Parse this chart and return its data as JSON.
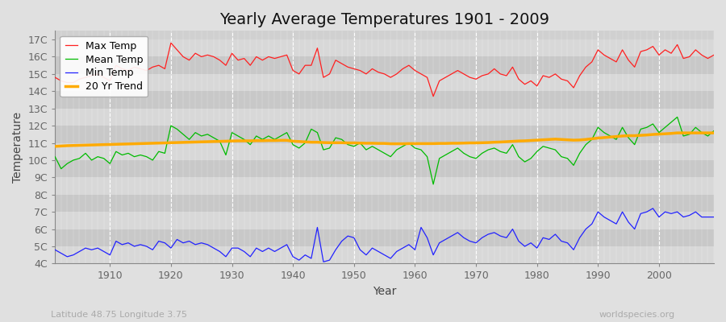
{
  "title": "Yearly Average Temperatures 1901 - 2009",
  "xlabel": "Year",
  "ylabel": "Temperature",
  "subtitle_left": "Latitude 48.75 Longitude 3.75",
  "subtitle_right": "worldspecies.org",
  "years": [
    1901,
    1902,
    1903,
    1904,
    1905,
    1906,
    1907,
    1908,
    1909,
    1910,
    1911,
    1912,
    1913,
    1914,
    1915,
    1916,
    1917,
    1918,
    1919,
    1920,
    1921,
    1922,
    1923,
    1924,
    1925,
    1926,
    1927,
    1928,
    1929,
    1930,
    1931,
    1932,
    1933,
    1934,
    1935,
    1936,
    1937,
    1938,
    1939,
    1940,
    1941,
    1942,
    1943,
    1944,
    1945,
    1946,
    1947,
    1948,
    1949,
    1950,
    1951,
    1952,
    1953,
    1954,
    1955,
    1956,
    1957,
    1958,
    1959,
    1960,
    1961,
    1962,
    1963,
    1964,
    1965,
    1966,
    1967,
    1968,
    1969,
    1970,
    1971,
    1972,
    1973,
    1974,
    1975,
    1976,
    1977,
    1978,
    1979,
    1980,
    1981,
    1982,
    1983,
    1984,
    1985,
    1986,
    1987,
    1988,
    1989,
    1990,
    1991,
    1992,
    1993,
    1994,
    1995,
    1996,
    1997,
    1998,
    1999,
    2000,
    2001,
    2002,
    2003,
    2004,
    2005,
    2006,
    2007,
    2008,
    2009
  ],
  "max_temp": [
    14.8,
    14.6,
    14.5,
    14.5,
    14.7,
    14.8,
    14.9,
    15.0,
    14.8,
    14.6,
    15.5,
    15.3,
    15.2,
    15.4,
    15.3,
    15.2,
    15.4,
    15.5,
    15.3,
    16.8,
    16.4,
    16.0,
    15.8,
    16.2,
    16.0,
    16.1,
    16.0,
    15.8,
    15.5,
    16.2,
    15.8,
    15.9,
    15.5,
    16.0,
    15.8,
    16.0,
    15.9,
    16.0,
    16.1,
    15.2,
    15.0,
    15.5,
    15.5,
    16.5,
    14.8,
    15.0,
    15.8,
    15.6,
    15.4,
    15.3,
    15.2,
    15.0,
    15.3,
    15.1,
    15.0,
    14.8,
    15.0,
    15.3,
    15.5,
    15.2,
    15.0,
    14.8,
    13.7,
    14.6,
    14.8,
    15.0,
    15.2,
    15.0,
    14.8,
    14.7,
    14.9,
    15.0,
    15.3,
    15.0,
    14.9,
    15.4,
    14.7,
    14.4,
    14.6,
    14.3,
    14.9,
    14.8,
    15.0,
    14.7,
    14.6,
    14.2,
    14.9,
    15.4,
    15.7,
    16.4,
    16.1,
    15.9,
    15.7,
    16.4,
    15.8,
    15.4,
    16.3,
    16.4,
    16.6,
    16.1,
    16.4,
    16.2,
    16.7,
    15.9,
    16.0,
    16.4,
    16.1,
    15.9,
    16.1
  ],
  "mean_temp": [
    10.2,
    9.5,
    9.8,
    10.0,
    10.1,
    10.4,
    10.0,
    10.2,
    10.1,
    9.8,
    10.5,
    10.3,
    10.4,
    10.2,
    10.3,
    10.2,
    10.0,
    10.5,
    10.4,
    12.0,
    11.8,
    11.5,
    11.2,
    11.6,
    11.4,
    11.5,
    11.3,
    11.1,
    10.3,
    11.6,
    11.4,
    11.2,
    10.9,
    11.4,
    11.2,
    11.4,
    11.2,
    11.4,
    11.6,
    10.9,
    10.7,
    11.0,
    11.8,
    11.6,
    10.6,
    10.7,
    11.3,
    11.2,
    10.9,
    10.8,
    11.0,
    10.6,
    10.8,
    10.6,
    10.4,
    10.2,
    10.6,
    10.8,
    11.0,
    10.7,
    10.6,
    10.2,
    8.6,
    10.1,
    10.3,
    10.5,
    10.7,
    10.4,
    10.2,
    10.1,
    10.4,
    10.6,
    10.7,
    10.5,
    10.4,
    10.9,
    10.2,
    9.9,
    10.1,
    10.5,
    10.8,
    10.7,
    10.6,
    10.2,
    10.1,
    9.7,
    10.4,
    10.9,
    11.2,
    11.9,
    11.6,
    11.4,
    11.2,
    11.9,
    11.3,
    10.9,
    11.8,
    11.9,
    12.1,
    11.6,
    11.9,
    12.2,
    12.5,
    11.4,
    11.5,
    11.9,
    11.6,
    11.4,
    11.7
  ],
  "min_temp": [
    4.8,
    4.6,
    4.4,
    4.5,
    4.7,
    4.9,
    4.8,
    4.9,
    4.7,
    4.5,
    5.3,
    5.1,
    5.2,
    5.0,
    5.1,
    5.0,
    4.8,
    5.3,
    5.2,
    4.9,
    5.4,
    5.2,
    5.3,
    5.1,
    5.2,
    5.1,
    4.9,
    4.7,
    4.4,
    4.9,
    4.9,
    4.7,
    4.4,
    4.9,
    4.7,
    4.9,
    4.7,
    4.9,
    5.1,
    4.4,
    4.2,
    4.5,
    4.3,
    6.1,
    4.1,
    4.2,
    4.8,
    5.3,
    5.6,
    5.5,
    4.8,
    4.5,
    4.9,
    4.7,
    4.5,
    4.3,
    4.7,
    4.9,
    5.1,
    4.8,
    6.1,
    5.5,
    4.5,
    5.2,
    5.4,
    5.6,
    5.8,
    5.5,
    5.3,
    5.2,
    5.5,
    5.7,
    5.8,
    5.6,
    5.5,
    6.0,
    5.3,
    5.0,
    5.2,
    4.9,
    5.5,
    5.4,
    5.7,
    5.3,
    5.2,
    4.8,
    5.5,
    6.0,
    6.3,
    7.0,
    6.7,
    6.5,
    6.3,
    7.0,
    6.4,
    6.0,
    6.9,
    7.0,
    7.2,
    6.7,
    7.0,
    6.9,
    7.0,
    6.7,
    6.8,
    7.0,
    6.7,
    6.7,
    6.7
  ],
  "trend": [
    10.8,
    10.82,
    10.84,
    10.85,
    10.86,
    10.87,
    10.88,
    10.89,
    10.9,
    10.91,
    10.92,
    10.93,
    10.94,
    10.95,
    10.96,
    10.97,
    10.98,
    10.99,
    11.0,
    11.01,
    11.02,
    11.03,
    11.04,
    11.05,
    11.06,
    11.07,
    11.08,
    11.09,
    11.1,
    11.11,
    11.12,
    11.12,
    11.12,
    11.13,
    11.13,
    11.14,
    11.14,
    11.15,
    11.15,
    11.1,
    11.08,
    11.06,
    11.04,
    11.04,
    11.02,
    11.01,
    11.01,
    11.01,
    11.0,
    11.0,
    10.99,
    10.98,
    10.98,
    10.97,
    10.97,
    10.95,
    10.95,
    10.95,
    10.96,
    10.96,
    10.96,
    10.96,
    10.96,
    10.97,
    10.97,
    10.98,
    10.98,
    10.99,
    11.0,
    11.0,
    11.01,
    11.02,
    11.04,
    11.05,
    11.07,
    11.09,
    11.11,
    11.12,
    11.14,
    11.16,
    11.18,
    11.2,
    11.22,
    11.2,
    11.18,
    11.16,
    11.17,
    11.2,
    11.24,
    11.28,
    11.31,
    11.34,
    11.37,
    11.4,
    11.42,
    11.42,
    11.44,
    11.46,
    11.49,
    11.51,
    11.53,
    11.55,
    11.58,
    11.58,
    11.58,
    11.58,
    11.58,
    11.58,
    11.58
  ],
  "max_color": "#ff2020",
  "mean_color": "#00bb00",
  "min_color": "#2222ff",
  "trend_color": "#ffaa00",
  "bg_color": "#e0e0e0",
  "plot_bg_color": "#d0d0d0",
  "band_light": "#d8d8d8",
  "band_dark": "#c8c8c8",
  "grid_color": "#ffffff",
  "ylim": [
    4.0,
    17.5
  ],
  "yticks": [
    4,
    5,
    6,
    7,
    8,
    9,
    10,
    11,
    12,
    13,
    14,
    15,
    16,
    17
  ],
  "ytick_labels": [
    "4C",
    "5C",
    "6C",
    "7C",
    "8C",
    "9C",
    "10C",
    "11C",
    "12C",
    "13C",
    "14C",
    "15C",
    "16C",
    "17C"
  ],
  "xtick_years": [
    1910,
    1920,
    1930,
    1940,
    1950,
    1960,
    1970,
    1980,
    1990,
    2000
  ],
  "title_fontsize": 14,
  "label_fontsize": 10,
  "tick_fontsize": 9,
  "legend_fontsize": 9
}
